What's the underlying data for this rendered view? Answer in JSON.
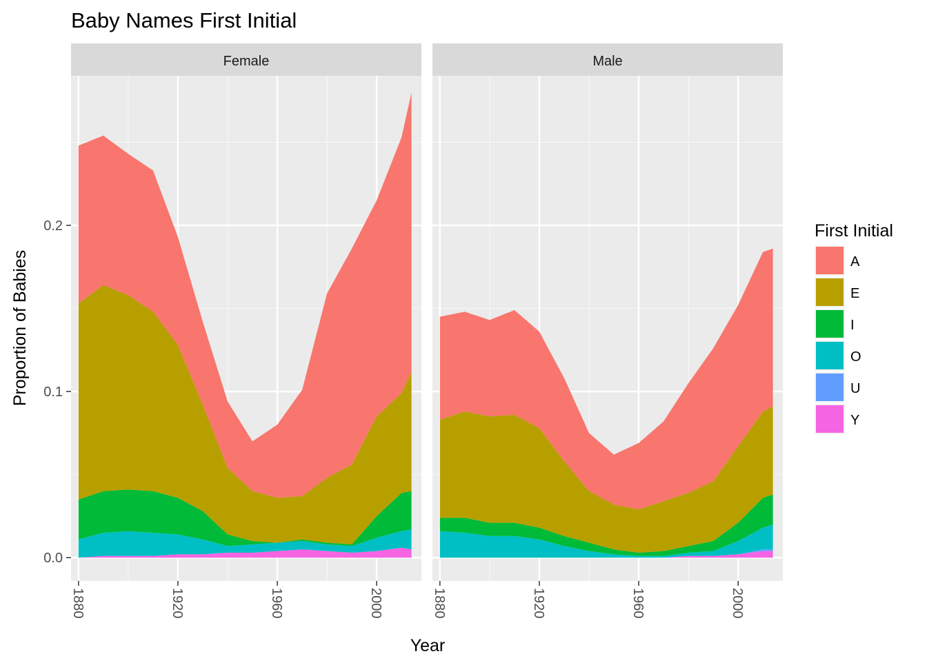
{
  "chart_data": {
    "type": "area",
    "stacked": true,
    "faceted": true,
    "title": "Baby Names First Initial",
    "xlabel": "Year",
    "ylabel": "Proportion of Babies",
    "xlim": [
      1877,
      2018
    ],
    "ylim": [
      -0.014,
      0.29
    ],
    "x_ticks": [
      1880,
      1920,
      1960,
      2000
    ],
    "x_tick_labels": [
      "1880",
      "1920",
      "1960",
      "2000"
    ],
    "y_ticks": [
      0.0,
      0.1,
      0.2
    ],
    "y_tick_labels": [
      "0.0",
      "0.1",
      "0.2"
    ],
    "grid": true,
    "legend": {
      "title": "First Initial",
      "position": "right",
      "entries": [
        "A",
        "E",
        "I",
        "O",
        "U",
        "Y"
      ]
    },
    "colors": {
      "A": "#F8766D",
      "E": "#B79F00",
      "I": "#00BA38",
      "O": "#00BFC4",
      "U": "#619CFF",
      "Y": "#F564E3"
    },
    "stack_order_bottom_to_top": [
      "Y",
      "U",
      "O",
      "I",
      "E",
      "A"
    ],
    "x": [
      1880,
      1890,
      1900,
      1910,
      1920,
      1930,
      1940,
      1950,
      1960,
      1970,
      1980,
      1990,
      2000,
      2010,
      2014
    ],
    "facets": [
      {
        "label": "Female",
        "series": [
          {
            "name": "Y",
            "values": [
              0.0,
              0.001,
              0.001,
              0.001,
              0.002,
              0.002,
              0.003,
              0.003,
              0.004,
              0.005,
              0.004,
              0.003,
              0.004,
              0.006,
              0.005
            ]
          },
          {
            "name": "U",
            "values": [
              0.0,
              0.0,
              0.0,
              0.0,
              0.0,
              0.0,
              0.0,
              0.0,
              0.0,
              0.0,
              0.0,
              0.0,
              0.0,
              0.0,
              0.0
            ]
          },
          {
            "name": "O",
            "values": [
              0.011,
              0.014,
              0.015,
              0.014,
              0.012,
              0.009,
              0.004,
              0.005,
              0.005,
              0.005,
              0.004,
              0.004,
              0.008,
              0.01,
              0.012
            ]
          },
          {
            "name": "I",
            "values": [
              0.024,
              0.025,
              0.025,
              0.025,
              0.022,
              0.017,
              0.007,
              0.002,
              0.0,
              0.001,
              0.001,
              0.001,
              0.013,
              0.023,
              0.023
            ]
          },
          {
            "name": "E",
            "values": [
              0.118,
              0.124,
              0.117,
              0.108,
              0.092,
              0.064,
              0.04,
              0.03,
              0.027,
              0.026,
              0.039,
              0.048,
              0.06,
              0.06,
              0.072
            ]
          },
          {
            "name": "A",
            "values": [
              0.095,
              0.09,
              0.085,
              0.085,
              0.065,
              0.05,
              0.04,
              0.03,
              0.044,
              0.064,
              0.111,
              0.13,
              0.13,
              0.154,
              0.168
            ]
          }
        ]
      },
      {
        "label": "Male",
        "series": [
          {
            "name": "Y",
            "values": [
              0.0,
              0.0,
              0.0,
              0.0,
              0.0,
              0.0,
              0.0,
              0.0,
              0.0,
              0.0,
              0.001,
              0.001,
              0.002,
              0.004,
              0.004
            ]
          },
          {
            "name": "U",
            "values": [
              0.0,
              0.0,
              0.0,
              0.0,
              0.0,
              0.0,
              0.0,
              0.0,
              0.0,
              0.0,
              0.0,
              0.0,
              0.0,
              0.001,
              0.001
            ]
          },
          {
            "name": "O",
            "values": [
              0.016,
              0.015,
              0.013,
              0.013,
              0.011,
              0.007,
              0.004,
              0.002,
              0.001,
              0.001,
              0.002,
              0.003,
              0.008,
              0.013,
              0.015
            ]
          },
          {
            "name": "I",
            "values": [
              0.008,
              0.009,
              0.008,
              0.008,
              0.007,
              0.006,
              0.005,
              0.003,
              0.002,
              0.003,
              0.004,
              0.006,
              0.011,
              0.018,
              0.018
            ]
          },
          {
            "name": "E",
            "values": [
              0.059,
              0.064,
              0.064,
              0.065,
              0.06,
              0.045,
              0.031,
              0.027,
              0.026,
              0.03,
              0.032,
              0.036,
              0.046,
              0.052,
              0.053
            ]
          },
          {
            "name": "A",
            "values": [
              0.062,
              0.06,
              0.058,
              0.063,
              0.058,
              0.05,
              0.035,
              0.03,
              0.04,
              0.048,
              0.066,
              0.08,
              0.085,
              0.096,
              0.095
            ]
          }
        ]
      }
    ]
  }
}
